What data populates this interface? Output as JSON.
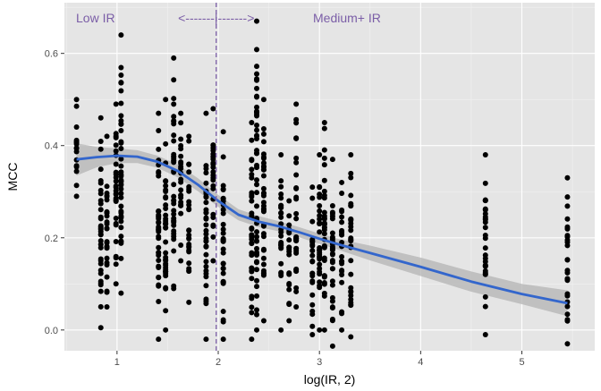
{
  "chart_data": {
    "type": "scatter",
    "title": "",
    "xlabel": "log(IR, 2)",
    "ylabel": "MCC",
    "xlim": [
      0.48,
      5.72
    ],
    "ylim": [
      -0.045,
      0.71
    ],
    "x_ticks": [
      1,
      2,
      3,
      4,
      5
    ],
    "y_ticks": [
      0.0,
      0.2,
      0.4,
      0.6
    ],
    "x_tick_labels": [
      "1",
      "2",
      "3",
      "4",
      "5"
    ],
    "y_tick_labels": [
      "0.0",
      "0.2",
      "0.4",
      "0.6"
    ],
    "grid": true,
    "background": "#e5e5e5",
    "point_color": "#000000",
    "smooth_color": "#3366cc",
    "band_color": "#b3b3b3",
    "annotation_color": "#7b5ea7",
    "threshold_x": 1.98,
    "annotations": {
      "low": "Low IR",
      "arrow": "<-------|------->",
      "high": "Medium+ IR"
    },
    "columns": [
      {
        "x": 0.6,
        "ymin": 0.29,
        "ymax": 0.5
      },
      {
        "x": 0.84,
        "ymin": 0.005,
        "ymax": 0.46
      },
      {
        "x": 0.9,
        "ymin": 0.05,
        "ymax": 0.42
      },
      {
        "x": 0.99,
        "ymin": 0.1,
        "ymax": 0.49
      },
      {
        "x": 1.04,
        "ymin": 0.08,
        "ymax": 0.64
      },
      {
        "x": 1.41,
        "ymin": -0.02,
        "ymax": 0.47
      },
      {
        "x": 1.48,
        "ymin": 0.0,
        "ymax": 0.5
      },
      {
        "x": 1.56,
        "ymin": 0.09,
        "ymax": 0.59
      },
      {
        "x": 1.63,
        "ymin": 0.15,
        "ymax": 0.47
      },
      {
        "x": 1.71,
        "ymin": 0.06,
        "ymax": 0.42
      },
      {
        "x": 1.88,
        "ymin": -0.02,
        "ymax": 0.47
      },
      {
        "x": 1.95,
        "ymin": 0.15,
        "ymax": 0.48
      },
      {
        "x": 2.05,
        "ymin": -0.02,
        "ymax": 0.43
      },
      {
        "x": 2.33,
        "ymin": -0.02,
        "ymax": 0.45
      },
      {
        "x": 2.38,
        "ymin": 0.0,
        "ymax": 0.67
      },
      {
        "x": 2.45,
        "ymin": 0.02,
        "ymax": 0.5
      },
      {
        "x": 2.62,
        "ymin": 0.0,
        "ymax": 0.38
      },
      {
        "x": 2.7,
        "ymin": 0.02,
        "ymax": 0.28
      },
      {
        "x": 2.77,
        "ymin": 0.05,
        "ymax": 0.49
      },
      {
        "x": 2.93,
        "ymin": -0.01,
        "ymax": 0.31
      },
      {
        "x": 3.0,
        "ymin": 0.0,
        "ymax": 0.38
      },
      {
        "x": 3.05,
        "ymin": 0.0,
        "ymax": 0.45
      },
      {
        "x": 3.13,
        "ymin": -0.035,
        "ymax": 0.37
      },
      {
        "x": 3.22,
        "ymin": 0.0,
        "ymax": 0.32
      },
      {
        "x": 3.31,
        "ymin": -0.015,
        "ymax": 0.38
      },
      {
        "x": 4.64,
        "ymin": -0.01,
        "ymax": 0.38
      },
      {
        "x": 5.45,
        "ymin": -0.03,
        "ymax": 0.33
      }
    ],
    "smooth_line": [
      {
        "x": 0.6,
        "y": 0.37
      },
      {
        "x": 0.8,
        "y": 0.375
      },
      {
        "x": 1.0,
        "y": 0.378
      },
      {
        "x": 1.2,
        "y": 0.376
      },
      {
        "x": 1.4,
        "y": 0.365
      },
      {
        "x": 1.6,
        "y": 0.345
      },
      {
        "x": 1.8,
        "y": 0.315
      },
      {
        "x": 2.0,
        "y": 0.28
      },
      {
        "x": 2.2,
        "y": 0.25
      },
      {
        "x": 2.4,
        "y": 0.235
      },
      {
        "x": 2.6,
        "y": 0.225
      },
      {
        "x": 2.8,
        "y": 0.212
      },
      {
        "x": 3.0,
        "y": 0.198
      },
      {
        "x": 3.2,
        "y": 0.185
      },
      {
        "x": 3.5,
        "y": 0.167
      },
      {
        "x": 4.0,
        "y": 0.137
      },
      {
        "x": 4.5,
        "y": 0.105
      },
      {
        "x": 5.0,
        "y": 0.078
      },
      {
        "x": 5.45,
        "y": 0.058
      }
    ],
    "confidence_halfwidth": [
      0.035,
      0.022,
      0.016,
      0.014,
      0.013,
      0.014,
      0.014,
      0.013,
      0.012,
      0.012,
      0.011,
      0.011,
      0.011,
      0.012,
      0.016,
      0.02,
      0.022,
      0.022,
      0.028
    ]
  }
}
